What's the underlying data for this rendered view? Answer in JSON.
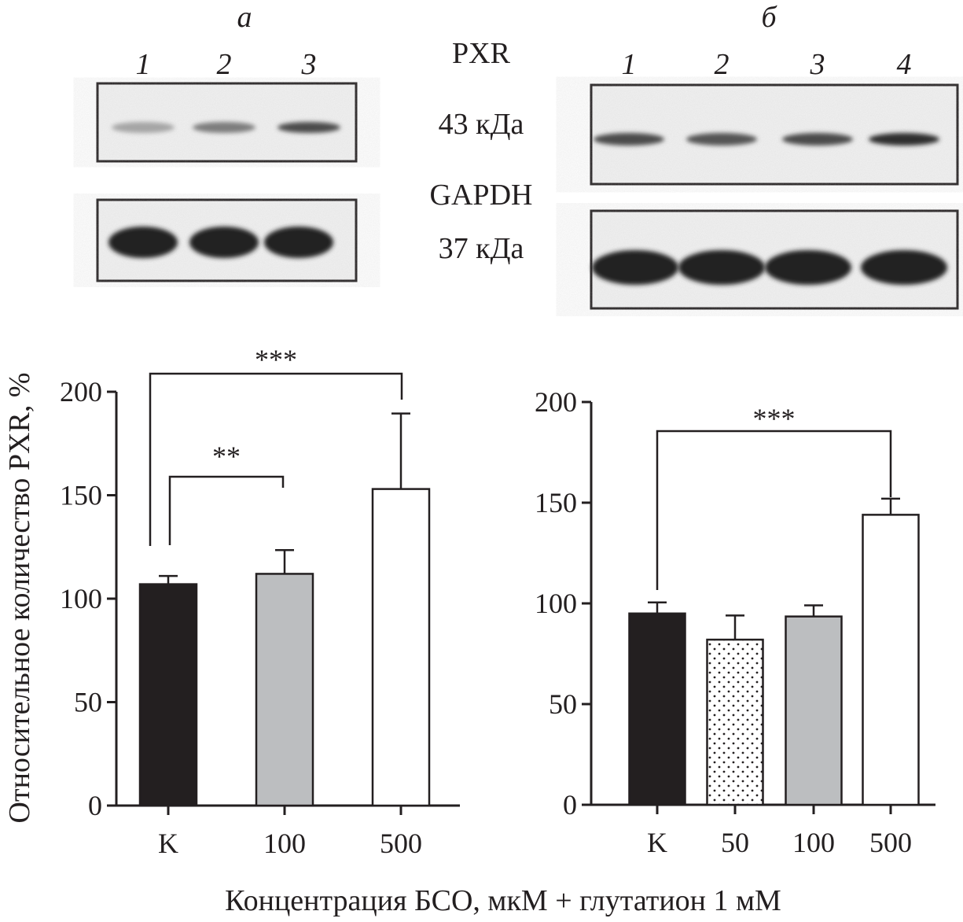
{
  "panels": {
    "a_label": "а",
    "b_label": "б"
  },
  "blot": {
    "protein1": "PXR",
    "protein1_mass": "43 кДа",
    "protein2": "GAPDH",
    "protein2_mass": "37 кДа",
    "lanes_a": [
      "1",
      "2",
      "3"
    ],
    "lanes_b": [
      "1",
      "2",
      "3",
      "4"
    ],
    "band_intensity_pxr_a": [
      0.35,
      0.55,
      0.8
    ],
    "band_intensity_pxr_b": [
      0.8,
      0.75,
      0.8,
      0.95
    ]
  },
  "chart_data": [
    {
      "type": "bar",
      "panel": "а",
      "categories": [
        "K",
        "100",
        "500"
      ],
      "values": [
        107,
        112,
        153
      ],
      "errors": [
        4,
        11.5,
        36.5
      ],
      "fills": [
        "#231f20",
        "#bcbec0",
        "#ffffff"
      ],
      "ylabel": "Относительное количество PXR, %",
      "ylim": [
        0,
        200
      ],
      "yticks": [
        "0",
        "50",
        "100",
        "150",
        "200"
      ],
      "significance": [
        {
          "from": "K",
          "to": "500",
          "label": "***"
        },
        {
          "from": "K",
          "to": "100",
          "label": "**"
        }
      ]
    },
    {
      "type": "bar",
      "panel": "б",
      "categories": [
        "K",
        "50",
        "100",
        "500"
      ],
      "values": [
        95,
        82,
        93.5,
        144
      ],
      "errors": [
        5.5,
        12,
        5.5,
        8
      ],
      "fills": [
        "#231f20",
        "dotted",
        "#bcbec0",
        "#ffffff"
      ],
      "ylim": [
        0,
        200
      ],
      "yticks": [
        "0",
        "50",
        "100",
        "150",
        "200"
      ],
      "significance": [
        {
          "from": "K",
          "to": "500",
          "label": "***"
        }
      ]
    }
  ],
  "xlabel": "Концентрация БСО, мкМ + глутатион 1 мМ"
}
